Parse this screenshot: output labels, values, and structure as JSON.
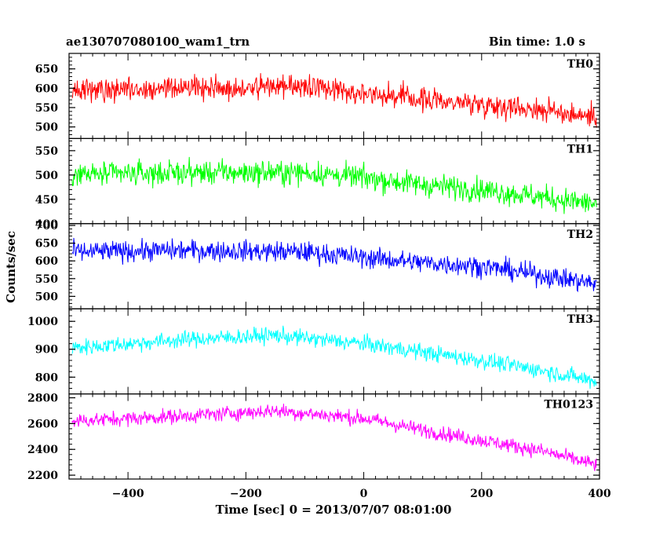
{
  "header": {
    "title": "ae130707080100_wam1_trn",
    "bin_time": "Bin time: 1.0 s"
  },
  "chart_data": {
    "type": "line",
    "xlabel": "Time [sec] 0 = 2013/07/07 08:01:00",
    "ylabel": "Counts/sec",
    "xlim": [
      -500,
      400
    ],
    "x_ticks": [
      -400,
      -200,
      0,
      200,
      400
    ],
    "x_range": [
      -495,
      395
    ],
    "series": [
      {
        "name": "TH0",
        "color": "#ff0000",
        "ylim": [
          470,
          690
        ],
        "y_ticks": [
          500,
          550,
          600,
          650
        ],
        "y_ticks_shown": [
          500,
          550,
          600,
          650
        ],
        "trend": [
          [
            -495,
            595
          ],
          [
            -300,
            600
          ],
          [
            -100,
            605
          ],
          [
            0,
            590
          ],
          [
            100,
            570
          ],
          [
            200,
            560
          ],
          [
            300,
            545
          ],
          [
            395,
            525
          ]
        ],
        "noise": 38
      },
      {
        "name": "TH1",
        "color": "#00ff00",
        "ylim": [
          400,
          575
        ],
        "y_ticks": [
          400,
          450,
          500,
          550
        ],
        "y_ticks_shown": [
          400,
          450,
          500,
          550
        ],
        "trend": [
          [
            -495,
            500
          ],
          [
            -300,
            505
          ],
          [
            -100,
            505
          ],
          [
            0,
            495
          ],
          [
            100,
            480
          ],
          [
            200,
            470
          ],
          [
            300,
            455
          ],
          [
            395,
            440
          ]
        ],
        "noise": 32
      },
      {
        "name": "TH2",
        "color": "#0000ff",
        "ylim": [
          465,
          705
        ],
        "y_ticks": [
          500,
          550,
          600,
          650,
          700
        ],
        "y_ticks_shown": [
          500,
          550,
          600,
          650,
          700
        ],
        "trend": [
          [
            -495,
            625
          ],
          [
            -300,
            630
          ],
          [
            -100,
            625
          ],
          [
            0,
            610
          ],
          [
            100,
            595
          ],
          [
            200,
            585
          ],
          [
            300,
            560
          ],
          [
            395,
            535
          ]
        ],
        "noise": 38
      },
      {
        "name": "TH3",
        "color": "#00ffff",
        "ylim": [
          740,
          1045
        ],
        "y_ticks": [
          800,
          900,
          1000
        ],
        "y_ticks_shown": [
          800,
          900,
          1000
        ],
        "trend": [
          [
            -495,
            905
          ],
          [
            -300,
            935
          ],
          [
            -150,
            950
          ],
          [
            0,
            920
          ],
          [
            100,
            890
          ],
          [
            200,
            860
          ],
          [
            300,
            825
          ],
          [
            395,
            785
          ]
        ],
        "noise": 38
      },
      {
        "name": "TH0123",
        "color": "#ff00ff",
        "ylim": [
          2170,
          2830
        ],
        "y_ticks": [
          2200,
          2400,
          2600,
          2800
        ],
        "y_ticks_shown": [
          2200,
          2400,
          2600,
          2800
        ],
        "trend": [
          [
            -495,
            2620
          ],
          [
            -300,
            2660
          ],
          [
            -150,
            2700
          ],
          [
            0,
            2640
          ],
          [
            100,
            2550
          ],
          [
            200,
            2470
          ],
          [
            300,
            2390
          ],
          [
            395,
            2280
          ]
        ],
        "noise": 75
      }
    ]
  }
}
